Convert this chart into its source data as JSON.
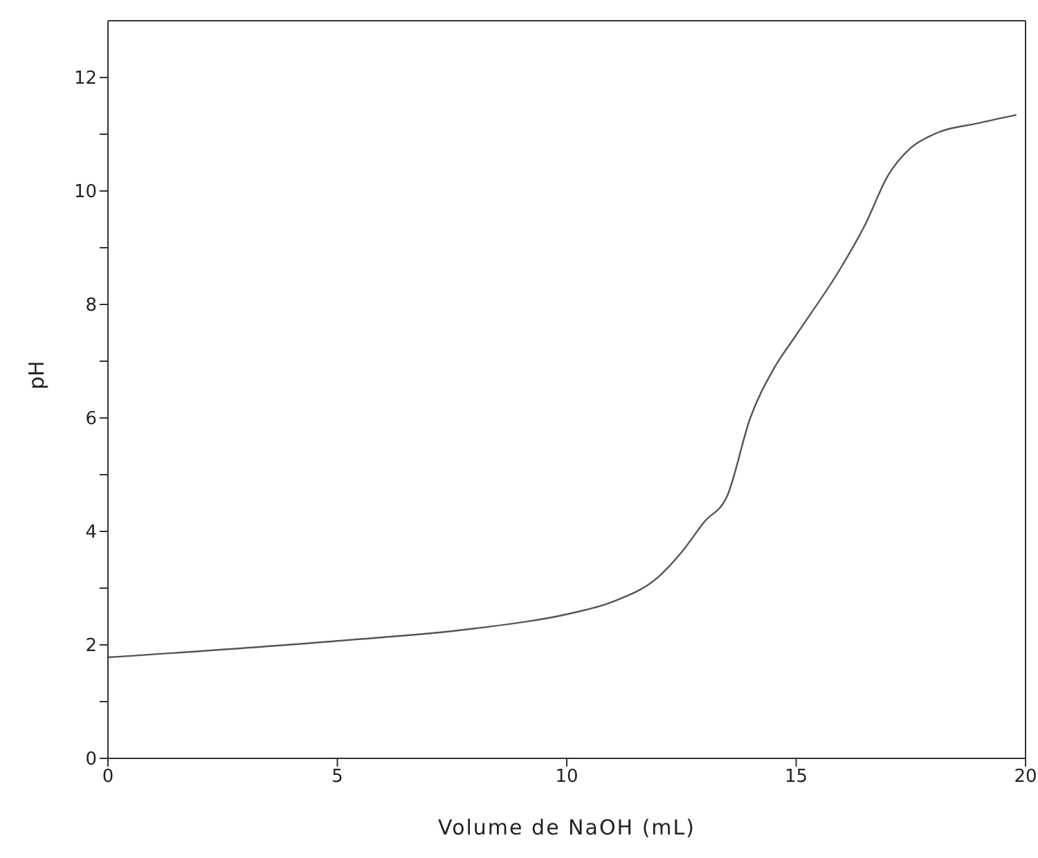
{
  "chart_data": {
    "type": "line",
    "xlabel": "Volume de NaOH (mL)",
    "ylabel": "pH",
    "x": [
      0,
      5,
      8,
      10,
      11,
      12,
      12.5,
      13,
      13.5,
      14,
      14.5,
      15,
      16,
      16.5,
      17,
      17.5,
      18,
      19,
      19.8
    ],
    "series": [
      {
        "color": "#555555",
        "values": [
          1.78,
          2.07,
          2.29,
          2.54,
          2.76,
          3.2,
          3.63,
          4.17,
          4.63,
          6.0,
          6.85,
          7.46,
          8.68,
          9.4,
          10.27,
          10.76,
          11.0,
          11.2,
          11.34
        ]
      }
    ],
    "xlim": [
      0,
      20
    ],
    "xticks": [
      0,
      5,
      10,
      15,
      20
    ],
    "ylim": [
      0,
      13
    ],
    "yticks": [
      0,
      {
        "value": 1,
        "label": null
      },
      2,
      {
        "value": 3,
        "label": null
      },
      4,
      {
        "value": 5,
        "label": null
      },
      6,
      {
        "value": 7,
        "label": null
      },
      8,
      {
        "value": 9,
        "label": null
      },
      10,
      {
        "value": 11,
        "label": null
      },
      12
    ],
    "grid": false,
    "legend": false,
    "marker": "none",
    "line_style": "solid"
  }
}
